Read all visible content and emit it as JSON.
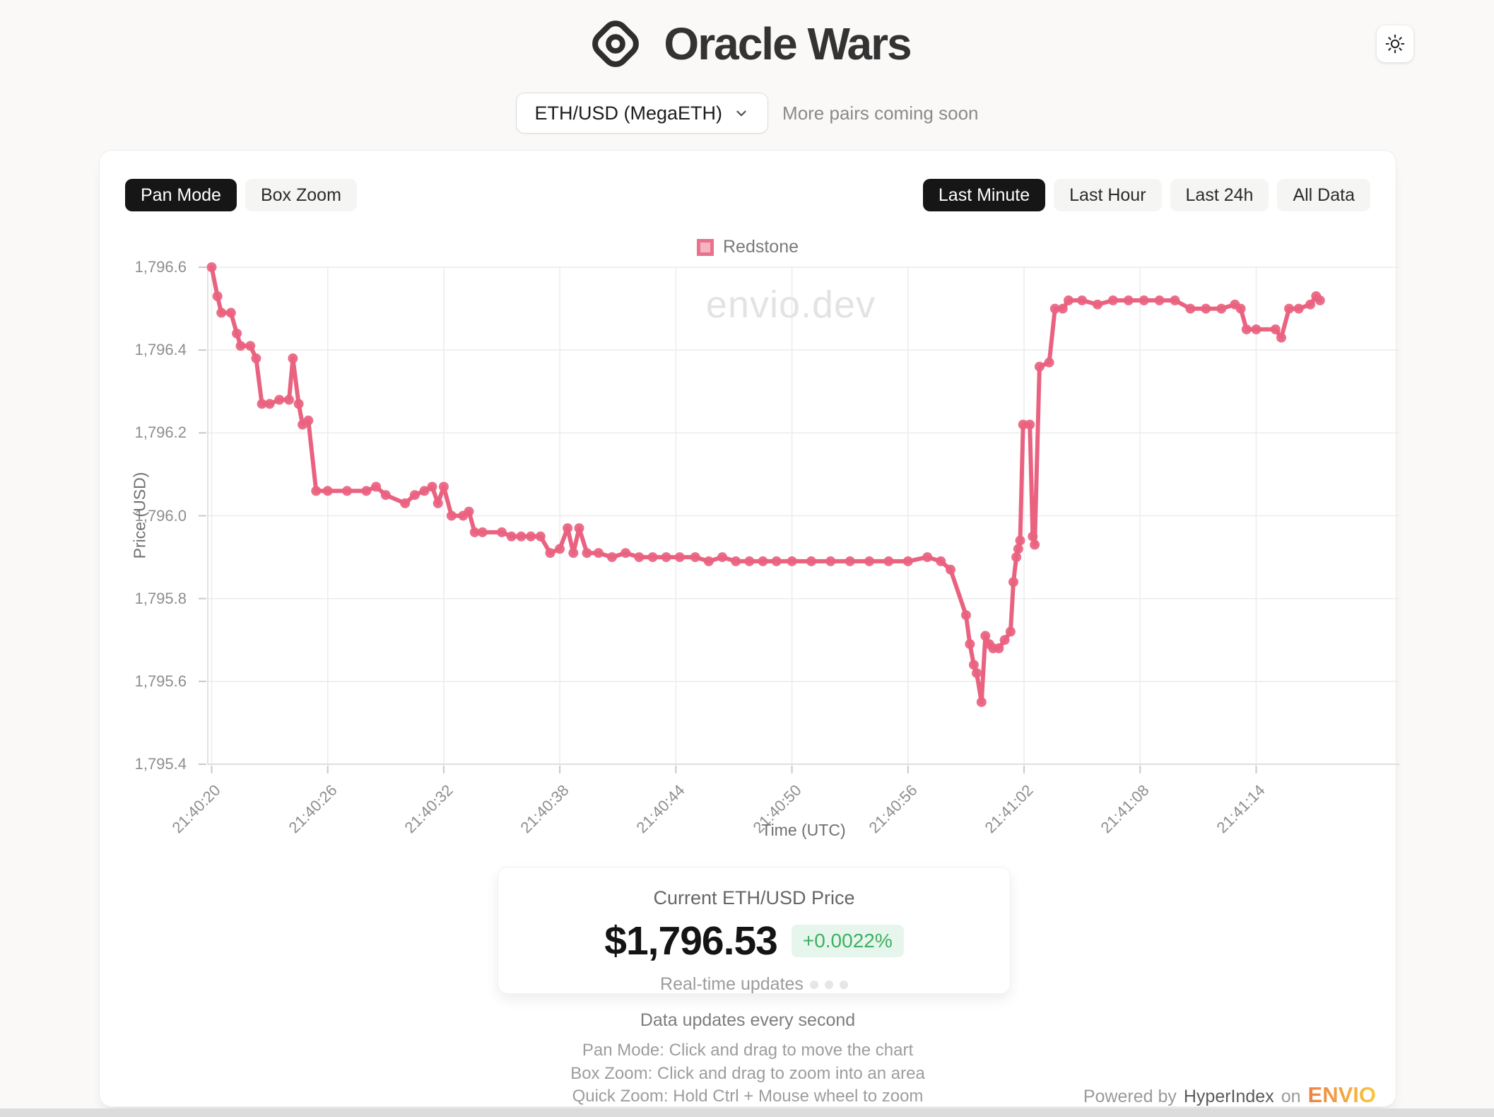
{
  "header": {
    "title": "Oracle Wars"
  },
  "pair_selector": {
    "value": "ETH/USD (MegaETH)",
    "hint": "More pairs coming soon"
  },
  "toolbar": {
    "pan_mode": "Pan Mode",
    "box_zoom": "Box Zoom",
    "active_mode": "Pan Mode",
    "ranges": [
      "Last Minute",
      "Last Hour",
      "Last 24h",
      "All Data"
    ],
    "active_range": "Last Minute"
  },
  "chart_data": {
    "type": "line",
    "title": "",
    "xlabel": "Time (UTC)",
    "ylabel": "Price (USD)",
    "watermark": "envio.dev",
    "grid": true,
    "legend_position": "top",
    "legend": [
      "Redstone"
    ],
    "series_color": "#e96280",
    "ylim": [
      1795.4,
      1796.6
    ],
    "y_ticks": [
      1795.4,
      1795.6,
      1795.8,
      1796.0,
      1796.2,
      1796.4,
      1796.6
    ],
    "y_tick_labels": [
      "1,795.4",
      "1,795.6",
      "1,795.8",
      "1,796.0",
      "1,796.2",
      "1,796.4",
      "1,796.6"
    ],
    "x_domain_seconds": [
      -0.2,
      61.4
    ],
    "x_tick_seconds": [
      0,
      6,
      12,
      18,
      24,
      30,
      36,
      42,
      48,
      54
    ],
    "x_tick_labels": [
      "21:40:20",
      "21:40:26",
      "21:40:32",
      "21:40:38",
      "21:40:44",
      "21:40:50",
      "21:40:56",
      "21:41:02",
      "21:41:08",
      "21:41:14"
    ],
    "series": [
      {
        "name": "Redstone",
        "points_t_seconds_after_21_40_20_and_price_usd": true,
        "points": [
          [
            0,
            1796.6
          ],
          [
            0.3,
            1796.53
          ],
          [
            0.5,
            1796.49
          ],
          [
            1,
            1796.49
          ],
          [
            1.3,
            1796.44
          ],
          [
            1.5,
            1796.41
          ],
          [
            2,
            1796.41
          ],
          [
            2.3,
            1796.38
          ],
          [
            2.6,
            1796.27
          ],
          [
            3,
            1796.27
          ],
          [
            3.5,
            1796.28
          ],
          [
            4,
            1796.28
          ],
          [
            4.2,
            1796.38
          ],
          [
            4.5,
            1796.27
          ],
          [
            4.7,
            1796.22
          ],
          [
            5,
            1796.23
          ],
          [
            5.4,
            1796.06
          ],
          [
            6,
            1796.06
          ],
          [
            7,
            1796.06
          ],
          [
            8,
            1796.06
          ],
          [
            8.5,
            1796.07
          ],
          [
            9,
            1796.05
          ],
          [
            10,
            1796.03
          ],
          [
            10.5,
            1796.05
          ],
          [
            11,
            1796.06
          ],
          [
            11.4,
            1796.07
          ],
          [
            11.7,
            1796.03
          ],
          [
            12,
            1796.07
          ],
          [
            12.4,
            1796.0
          ],
          [
            13,
            1796.0
          ],
          [
            13.3,
            1796.01
          ],
          [
            13.6,
            1795.96
          ],
          [
            14,
            1795.96
          ],
          [
            15,
            1795.96
          ],
          [
            15.5,
            1795.95
          ],
          [
            16,
            1795.95
          ],
          [
            16.5,
            1795.95
          ],
          [
            17,
            1795.95
          ],
          [
            17.5,
            1795.91
          ],
          [
            18,
            1795.92
          ],
          [
            18.4,
            1795.97
          ],
          [
            18.7,
            1795.91
          ],
          [
            19,
            1795.97
          ],
          [
            19.4,
            1795.91
          ],
          [
            20,
            1795.91
          ],
          [
            20.7,
            1795.9
          ],
          [
            21.4,
            1795.91
          ],
          [
            22.1,
            1795.9
          ],
          [
            22.8,
            1795.9
          ],
          [
            23.5,
            1795.9
          ],
          [
            24.2,
            1795.9
          ],
          [
            25,
            1795.9
          ],
          [
            25.7,
            1795.89
          ],
          [
            26.4,
            1795.9
          ],
          [
            27.1,
            1795.89
          ],
          [
            27.8,
            1795.89
          ],
          [
            28.5,
            1795.89
          ],
          [
            29.2,
            1795.89
          ],
          [
            30,
            1795.89
          ],
          [
            31,
            1795.89
          ],
          [
            32,
            1795.89
          ],
          [
            33,
            1795.89
          ],
          [
            34,
            1795.89
          ],
          [
            35,
            1795.89
          ],
          [
            36,
            1795.89
          ],
          [
            37,
            1795.9
          ],
          [
            37.7,
            1795.89
          ],
          [
            38.2,
            1795.87
          ],
          [
            39,
            1795.76
          ],
          [
            39.2,
            1795.69
          ],
          [
            39.4,
            1795.64
          ],
          [
            39.55,
            1795.62
          ],
          [
            39.8,
            1795.55
          ],
          [
            40,
            1795.71
          ],
          [
            40.2,
            1795.69
          ],
          [
            40.4,
            1795.68
          ],
          [
            40.7,
            1795.68
          ],
          [
            41,
            1795.7
          ],
          [
            41.3,
            1795.72
          ],
          [
            41.45,
            1795.84
          ],
          [
            41.6,
            1795.9
          ],
          [
            41.7,
            1795.92
          ],
          [
            41.8,
            1795.94
          ],
          [
            41.95,
            1796.22
          ],
          [
            42.3,
            1796.22
          ],
          [
            42.45,
            1795.95
          ],
          [
            42.55,
            1795.93
          ],
          [
            42.8,
            1796.36
          ],
          [
            43.3,
            1796.37
          ],
          [
            43.6,
            1796.5
          ],
          [
            44,
            1796.5
          ],
          [
            44.3,
            1796.52
          ],
          [
            45,
            1796.52
          ],
          [
            45.8,
            1796.51
          ],
          [
            46.6,
            1796.52
          ],
          [
            47.4,
            1796.52
          ],
          [
            48.2,
            1796.52
          ],
          [
            49,
            1796.52
          ],
          [
            49.8,
            1796.52
          ],
          [
            50.6,
            1796.5
          ],
          [
            51.4,
            1796.5
          ],
          [
            52.2,
            1796.5
          ],
          [
            52.9,
            1796.51
          ],
          [
            53.2,
            1796.5
          ],
          [
            53.5,
            1796.45
          ],
          [
            54,
            1796.45
          ],
          [
            55,
            1796.45
          ],
          [
            55.3,
            1796.43
          ],
          [
            55.7,
            1796.5
          ],
          [
            56.2,
            1796.5
          ],
          [
            56.8,
            1796.51
          ],
          [
            57.1,
            1796.53
          ],
          [
            57.3,
            1796.52
          ]
        ]
      }
    ]
  },
  "price_card": {
    "title": "Current ETH/USD Price",
    "price": "$1,796.53",
    "change": "+0.0022%",
    "subtitle": "Real-time updates"
  },
  "footer": {
    "line1": "Data updates every second",
    "line2": "Pan Mode: Click and drag to move the chart",
    "line3": "Box Zoom: Click and drag to zoom into an area",
    "line4": "Quick Zoom: Hold Ctrl + Mouse wheel to zoom"
  },
  "powered_by": {
    "prefix": "Powered by",
    "name": "HyperIndex",
    "conj": "on",
    "brand": "ENVIO"
  },
  "colors": {
    "accent_line": "#e96280",
    "legend_fill": "#f4b4c2",
    "legend_border": "#e8718c",
    "active_button_bg": "#161616",
    "positive_text": "#3faf63",
    "positive_bg": "#e7f6ec",
    "envio_gradient_start": "#ee8147",
    "envio_gradient_end": "#f6c93d"
  }
}
